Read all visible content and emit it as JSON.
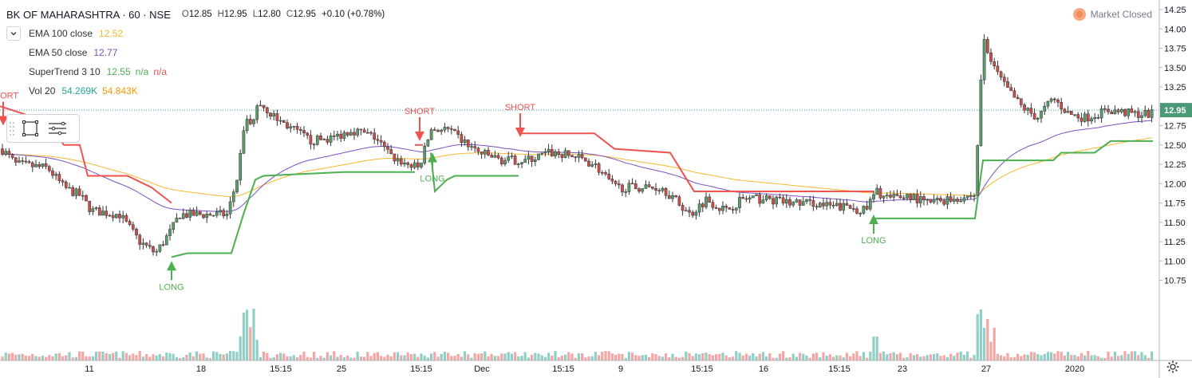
{
  "symbol": {
    "title": "BK OF MAHARASHTRA · 60 · NSE",
    "open_label": "O",
    "open": "12.85",
    "high_label": "H",
    "high": "12.95",
    "low_label": "L",
    "low": "12.80",
    "close_label": "C",
    "close": "12.95",
    "change": "+0.10 (+0.78%)"
  },
  "indicators": {
    "collapse_icon": "chevron-down-icon",
    "ema100": {
      "name": "EMA 100 close",
      "value": "12.52",
      "color": "#f5b82e"
    },
    "ema50": {
      "name": "EMA 50 close",
      "value": "12.77",
      "color": "#7b4fbf"
    },
    "supertrend": {
      "name": "SuperTrend 3 10",
      "value": "12.55",
      "v2": "n/a",
      "v3": "n/a",
      "up_color": "#4caf50",
      "down_color": "#ef5350"
    },
    "volume": {
      "name": "Vol 20",
      "value": "54.269K",
      "ma_value": "54.843K",
      "color": "#26a69a",
      "ma_color": "#ff9800"
    }
  },
  "market_status": "Market Closed",
  "last_price_label": "12.95",
  "chart_data": {
    "type": "candlestick",
    "y_axis_ticks": [
      "14.25",
      "14.00",
      "13.75",
      "13.50",
      "13.25",
      "13.00",
      "12.75",
      "12.50",
      "12.25",
      "12.00",
      "11.75",
      "11.50",
      "11.25",
      "11.00",
      "10.75"
    ],
    "x_axis_labels": [
      "11",
      "18",
      "15:15",
      "25",
      "15:15",
      "Dec",
      "15:15",
      "9",
      "15:15",
      "16",
      "15:15",
      "23",
      "27",
      "2020"
    ],
    "signals": [
      {
        "label": "SHORT",
        "type": "short"
      },
      {
        "label": "LONG",
        "type": "long"
      },
      {
        "label": "SHORT",
        "type": "short"
      },
      {
        "label": "LONG",
        "type": "long"
      },
      {
        "label": "SHORT",
        "type": "short"
      },
      {
        "label": "LONG",
        "type": "long"
      }
    ],
    "colors": {
      "up": "#26a69a",
      "down": "#ef5350",
      "up_body": "#5b9b6d",
      "down_body": "#c9504a"
    }
  },
  "toolbar": {
    "handle_icon": "drag-handle-icon",
    "rect_icon": "rectangle-tool-icon",
    "menu_icon": "lines-menu-icon"
  },
  "settings_icon": "gear-icon"
}
